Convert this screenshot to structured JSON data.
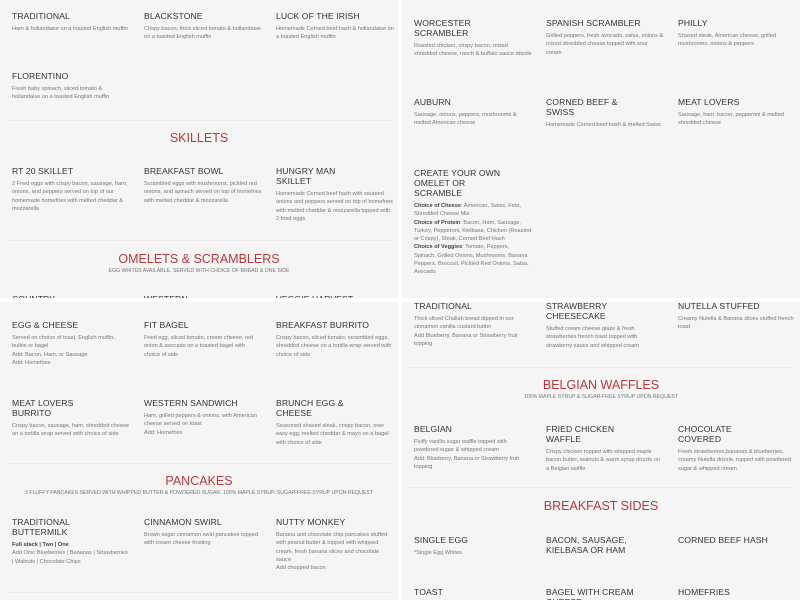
{
  "accent_color": "#b5393a",
  "panels": [
    {
      "rows": [
        [
          {
            "title": "TRADITIONAL",
            "lines": [
              "Ham & hollandaise on a toasted English muffin"
            ]
          },
          {
            "title": "BLACKSTONE",
            "lines": [
              "Crispy bacon, thick sliced tomato & hollandaise on a toasted English muffin"
            ]
          },
          {
            "title": "LUCK OF THE IRISH",
            "lines": [
              "Homemade Corned beef hash & hollandaise on a toasted English muffin"
            ]
          }
        ],
        [
          {
            "title": "FLORENTINO",
            "lines": [
              "Fresh baby spinach, sliced tomato & hollandaise on a toasted English muffin"
            ]
          }
        ],
        [
          {
            "title": "RT 20 SKILLET",
            "lines": [
              "2 Fried eggs with crispy bacon, sausage, ham, onions, and peppers served on top of our homemade homefries with melted cheddar & mozzarella"
            ]
          },
          {
            "title": "BREAKFAST BOWL",
            "lines": [
              "Scrambled eggs with mushrooms, pickled red onions, and spinach served on top of homefries with melted cheddar & mozzarella"
            ]
          },
          {
            "title": "HUNGRY MAN SKILLET",
            "lines": [
              "Homemade Corned beef hash with sauteed onions and peppers served on top of homefries with melted cheddar & mozzarella topped with 2 fried eggs"
            ]
          }
        ],
        [
          {
            "title": "COUNTRY",
            "lines": []
          },
          {
            "title": "WESTERN",
            "lines": []
          },
          {
            "title": "VEGGIE HARVEST",
            "lines": []
          }
        ]
      ],
      "sections": [
        {
          "title": "SKILLETS",
          "subtitle": ""
        },
        {
          "title": "OMELETS & SCRAMBLERS",
          "subtitle": "EGG WHITES AVAILABLE. SERVED WITH CHOICE OF BREAD & ONE SIDE"
        }
      ]
    },
    {
      "rows": [
        [
          {
            "title": "WORCESTER SCRAMBLER",
            "lines": [
              "Roasted chicken, crispy bacon, mixed shredded cheese, ranch & buffalo sauce drizzle"
            ]
          },
          {
            "title": "SPANISH SCRAMBLER",
            "lines": [
              "Grilled peppers, fresh avocado, salsa, onions & mixed shredded cheese topped with sour cream"
            ]
          },
          {
            "title": "PHILLY",
            "lines": [
              "Shaved steak, American cheese, grilled mushrooms, onions & peppers"
            ]
          }
        ],
        [
          {
            "title": "AUBURN",
            "lines": [
              "Sausage, onions, peppers, mushrooms & melted American cheese"
            ]
          },
          {
            "title": "CORNED BEEF & SWISS",
            "lines": [
              "Homemade Corned beef hash & melted Swiss"
            ]
          },
          {
            "title": "MEAT LOVERS",
            "lines": [
              "Sausage, ham, bacon, pepperoni & melted shredded cheese"
            ]
          }
        ],
        [
          {
            "title": "CREATE YOUR OWN OMELET OR SCRAMBLE",
            "lines": [
              {
                "b": "Choice of Cheese",
                "t": ": American, Swiss, Feta, Shredded Cheese Mix"
              },
              {
                "b": "Choice of Protein",
                "t": ": Bacon, Ham, Sausage, Turkey, Pepperoni, Kielbasa, Chicken (Roasted or Crispy), Steak, Corned Beef Hash"
              },
              {
                "b": "Choice of Veggies",
                "t": ": Tomato, Peppers, Spinach, Grilled Onions, Mushrooms, Banana Peppers, Broccoli, Pickled Red Onions, Salsa,  Avocado"
              }
            ]
          }
        ]
      ],
      "sections": []
    },
    {
      "rows": [
        [
          {
            "title": "EGG & CHEESE",
            "lines": [
              "Served on choice of toast, English muffin, bulkie or bagel",
              "Add: Bacon, Ham, or Sausage",
              "Add: Homefries"
            ]
          },
          {
            "title": "FIT BAGEL",
            "lines": [
              "Fried egg, sliced tomato, cream cheese, red onion & avocado on a toasted bagel with choice of side"
            ]
          },
          {
            "title": "BREAKFAST BURRITO",
            "lines": [
              "Crispy bacon, sliced tomato, scrambled eggs, shredded cheese on a tortilla wrap served with choice of side"
            ]
          }
        ],
        [
          {
            "title": "MEAT LOVERS BURRITO",
            "lines": [
              "Crispy bacon, sausage, ham, shredded cheese on a tortilla wrap served with choice of side"
            ]
          },
          {
            "title": "WESTERN SANDWICH",
            "lines": [
              "Ham, grilled peppers & onions, with American cheese served on toast",
              "Add: Homefries"
            ]
          },
          {
            "title": "BRUNCH EGG & CHEESE",
            "lines": [
              "Seasoned shaved steak, crispy bacon, over easy egg, melted cheddar & mayo on a bagel with choice of side"
            ]
          }
        ],
        [
          {
            "title": "TRADITIONAL BUTTERMILK",
            "lines": [
              {
                "b": "Full stack | Two | One",
                "t": ""
              },
              "Add Ons: Blueberries | Bananas | Strawberries | Walnuts | Chocolate Chips"
            ]
          },
          {
            "title": "CINNAMON SWIRL",
            "lines": [
              "Brown sugar cinnamon swirl pancakes topped with cream cheese frosting"
            ]
          },
          {
            "title": "NUTTY MONKEY",
            "lines": [
              "Banana and chocolate chip pancakes stuffed with peanut butter & topped with whipped cream, fresh banana slices and chocolate sauce",
              "Add chopped bacon"
            ]
          }
        ]
      ],
      "sections": [
        {
          "title": "PANCAKES",
          "subtitle": "3 FLUFFY PANCAKES SERVED WITH WHIPPED BUTTER & POWDERED SUGAR. 100% MAPLE SYRUP. SUGAR-FREE SYRUP UPON REQUEST"
        }
      ]
    },
    {
      "rows": [
        [
          {
            "title": "TRADITIONAL",
            "lines": [
              "Thick sliced Challah bread dipped in our cinnamon vanilla custard batter",
              "Add Blueberry, Banana or Strawberry fruit topping"
            ]
          },
          {
            "title": "STRAWBERRY CHEESECAKE",
            "lines": [
              "Stuffed cream cheese glaze & fresh strawberries french toast topped with strawberry sauce and whipped cream"
            ]
          },
          {
            "title": "NUTELLA STUFFED",
            "lines": [
              "Creamy Nutella & Banana slices stuffed french toast"
            ]
          }
        ],
        [
          {
            "title": "BELGIAN",
            "lines": [
              "Fluffy vanilla sugar waffle topped with powdered sugar & whipped cream",
              "Add: Blueberry, Banana or Strawberry fruit topping"
            ]
          },
          {
            "title": "FRIED CHICKEN WAFFLE",
            "lines": [
              "Crispy chicken topped with whipped maple bacon butter, walnuts & warm syrup drizzle on a Belgian waffle"
            ]
          },
          {
            "title": "CHOCOLATE COVERED",
            "lines": [
              "Fresh strawberries,bananas & blueberries, creamy Nutella drizzle, topped with powdered sugar & whipped cream"
            ]
          }
        ],
        [
          {
            "title": "SINGLE EGG",
            "lines": [
              "*Single Egg Whites"
            ]
          },
          {
            "title": "BACON, SAUSAGE, KIELBASA OR HAM",
            "lines": []
          },
          {
            "title": "CORNED BEEF HASH",
            "lines": []
          }
        ],
        [
          {
            "title": "TOAST",
            "lines": []
          },
          {
            "title": "BAGEL WITH CREAM CHEESE",
            "lines": []
          },
          {
            "title": "HOMEFRIES",
            "lines": []
          }
        ]
      ],
      "sections": [
        {
          "title": "BELGIAN WAFFLES",
          "subtitle": "100% MAPLE SYRUP & SUGAR-FREE SYRUP UPON REQUEST"
        },
        {
          "title": "BREAKFAST SIDES",
          "subtitle": ""
        }
      ]
    }
  ]
}
